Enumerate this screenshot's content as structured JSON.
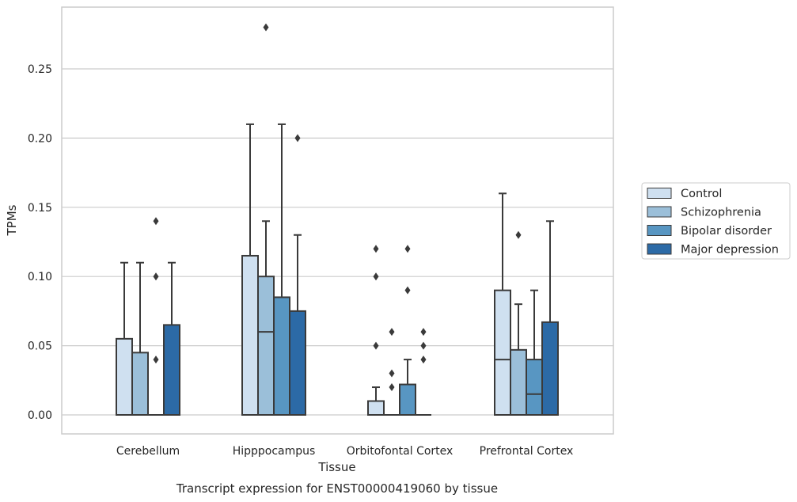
{
  "chart_data": {
    "type": "box",
    "title": "",
    "caption": "Transcript expression for ENST00000419060 by tissue",
    "xlabel": "Tissue",
    "ylabel": "TPMs",
    "ylim": [
      -0.014,
      0.295
    ],
    "yticks": [
      0.0,
      0.05,
      0.1,
      0.15,
      0.2,
      0.25
    ],
    "ytick_labels": [
      "0.00",
      "0.05",
      "0.10",
      "0.15",
      "0.20",
      "0.25"
    ],
    "grid": "horizontal",
    "legend_position": "outside-right",
    "categories": [
      "Cerebellum",
      "Hipppocampus",
      "Orbitofontal Cortex",
      "Prefrontal Cortex"
    ],
    "series": [
      {
        "name": "Control",
        "color": "#cfe0f0",
        "boxes": [
          {
            "q1": 0.0,
            "median": 0.0,
            "q3": 0.055,
            "whisker_low": 0.0,
            "whisker_high": 0.11,
            "outliers": []
          },
          {
            "q1": 0.0,
            "median": 0.0,
            "q3": 0.115,
            "whisker_low": 0.0,
            "whisker_high": 0.21,
            "outliers": []
          },
          {
            "q1": 0.0,
            "median": 0.0,
            "q3": 0.01,
            "whisker_low": 0.0,
            "whisker_high": 0.02,
            "outliers": [
              0.05,
              0.1,
              0.12
            ]
          },
          {
            "q1": 0.0,
            "median": 0.04,
            "q3": 0.09,
            "whisker_low": 0.0,
            "whisker_high": 0.16,
            "outliers": []
          }
        ]
      },
      {
        "name": "Schizophrenia",
        "color": "#9bbfd9",
        "boxes": [
          {
            "q1": 0.0,
            "median": 0.0,
            "q3": 0.045,
            "whisker_low": 0.0,
            "whisker_high": 0.11,
            "outliers": []
          },
          {
            "q1": 0.0,
            "median": 0.06,
            "q3": 0.1,
            "whisker_low": 0.0,
            "whisker_high": 0.14,
            "outliers": [
              0.28
            ]
          },
          {
            "q1": 0.0,
            "median": 0.0,
            "q3": 0.0,
            "whisker_low": 0.0,
            "whisker_high": 0.0,
            "outliers": [
              0.02,
              0.03,
              0.06
            ]
          },
          {
            "q1": 0.0,
            "median": 0.0,
            "q3": 0.047,
            "whisker_low": 0.0,
            "whisker_high": 0.08,
            "outliers": [
              0.13
            ]
          }
        ]
      },
      {
        "name": "Bipolar disorder",
        "color": "#5896c2",
        "boxes": [
          {
            "q1": 0.0,
            "median": 0.0,
            "q3": 0.0,
            "whisker_low": 0.0,
            "whisker_high": 0.0,
            "outliers": [
              0.04,
              0.1,
              0.14
            ]
          },
          {
            "q1": 0.0,
            "median": 0.0,
            "q3": 0.085,
            "whisker_low": 0.0,
            "whisker_high": 0.21,
            "outliers": []
          },
          {
            "q1": 0.0,
            "median": 0.0,
            "q3": 0.022,
            "whisker_low": 0.0,
            "whisker_high": 0.04,
            "outliers": [
              0.09,
              0.12
            ]
          },
          {
            "q1": 0.0,
            "median": 0.015,
            "q3": 0.04,
            "whisker_low": 0.0,
            "whisker_high": 0.09,
            "outliers": []
          }
        ]
      },
      {
        "name": "Major depression",
        "color": "#2c6aa6",
        "boxes": [
          {
            "q1": 0.0,
            "median": 0.0,
            "q3": 0.065,
            "whisker_low": 0.0,
            "whisker_high": 0.11,
            "outliers": []
          },
          {
            "q1": 0.0,
            "median": 0.0,
            "q3": 0.075,
            "whisker_low": 0.0,
            "whisker_high": 0.13,
            "outliers": [
              0.2
            ]
          },
          {
            "q1": 0.0,
            "median": 0.0,
            "q3": 0.0,
            "whisker_low": 0.0,
            "whisker_high": 0.0,
            "outliers": [
              0.04,
              0.05,
              0.06
            ]
          },
          {
            "q1": 0.0,
            "median": 0.0,
            "q3": 0.067,
            "whisker_low": 0.0,
            "whisker_high": 0.14,
            "outliers": []
          }
        ]
      }
    ]
  }
}
